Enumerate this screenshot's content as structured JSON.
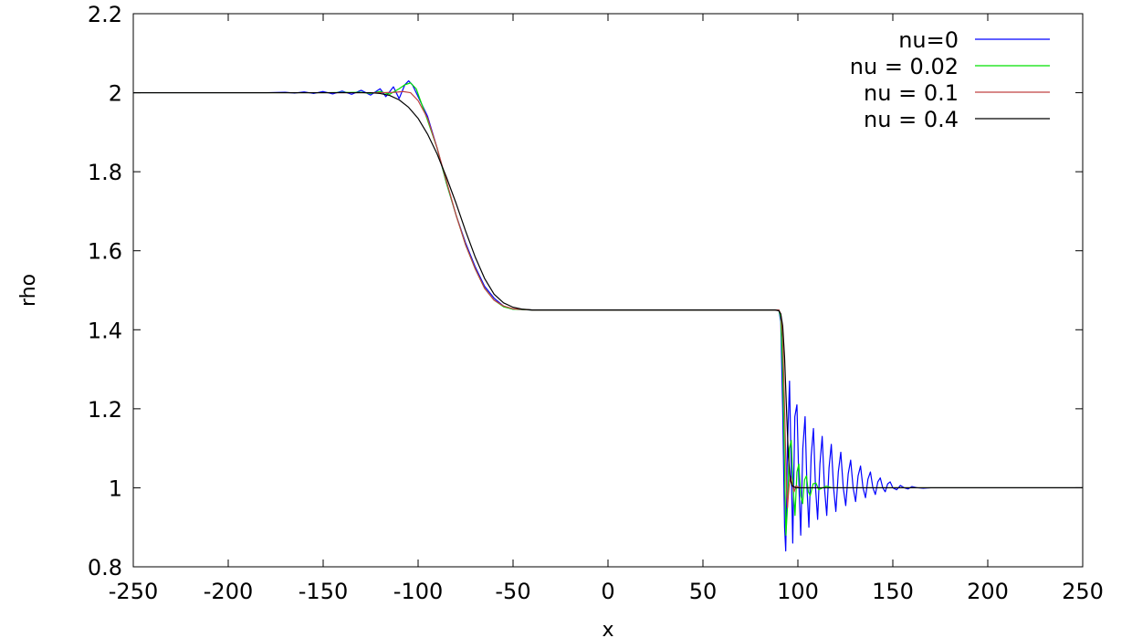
{
  "chart_data": {
    "type": "line",
    "title": "",
    "xlabel": "x",
    "ylabel": "rho",
    "xlim": [
      -250,
      250
    ],
    "ylim": [
      0.8,
      2.2
    ],
    "x_ticks": [
      -250,
      -200,
      -150,
      -100,
      -50,
      0,
      50,
      100,
      150,
      200,
      250
    ],
    "x_tick_labels": [
      "-250",
      "-200",
      "-150",
      "-100",
      "-50",
      "0",
      "50",
      "100",
      "150",
      "200",
      "250"
    ],
    "y_ticks": [
      0.8,
      1.0,
      1.2,
      1.4,
      1.6,
      1.8,
      2.0,
      2.2
    ],
    "y_tick_labels": [
      "0.8",
      "1",
      "1.2",
      "1.4",
      "1.6",
      "1.8",
      "2",
      "2.2"
    ],
    "grid": false,
    "legend_position": "top-right",
    "series": [
      {
        "name": "nu=0",
        "color": "#0000ff",
        "points": [
          [
            -250,
            2.0
          ],
          [
            -180,
            2.0
          ],
          [
            -170,
            2.001
          ],
          [
            -165,
            1.999
          ],
          [
            -160,
            2.002
          ],
          [
            -155,
            1.998
          ],
          [
            -150,
            2.003
          ],
          [
            -145,
            1.997
          ],
          [
            -140,
            2.004
          ],
          [
            -135,
            1.996
          ],
          [
            -130,
            2.006
          ],
          [
            -125,
            1.994
          ],
          [
            -120,
            2.01
          ],
          [
            -117,
            1.99
          ],
          [
            -113,
            2.015
          ],
          [
            -110,
            1.985
          ],
          [
            -107,
            2.02
          ],
          [
            -105,
            2.03
          ],
          [
            -103,
            2.02
          ],
          [
            -100,
            1.99
          ],
          [
            -95,
            1.94
          ],
          [
            -90,
            1.86
          ],
          [
            -85,
            1.77
          ],
          [
            -80,
            1.69
          ],
          [
            -75,
            1.62
          ],
          [
            -70,
            1.56
          ],
          [
            -65,
            1.51
          ],
          [
            -60,
            1.48
          ],
          [
            -55,
            1.46
          ],
          [
            -50,
            1.452
          ],
          [
            -40,
            1.45
          ],
          [
            0,
            1.45
          ],
          [
            50,
            1.45
          ],
          [
            90,
            1.45
          ],
          [
            91,
            1.42
          ],
          [
            92,
            1.2
          ],
          [
            93,
            0.9
          ],
          [
            93.6,
            0.84
          ],
          [
            94.5,
            1.1
          ],
          [
            95.6,
            1.27
          ],
          [
            96.5,
            1.05
          ],
          [
            97.3,
            0.86
          ],
          [
            98.4,
            1.18
          ],
          [
            99.5,
            1.21
          ],
          [
            100.6,
            1.0
          ],
          [
            101.5,
            0.88
          ],
          [
            102.6,
            1.1
          ],
          [
            103.8,
            1.18
          ],
          [
            104.8,
            1.0
          ],
          [
            105.8,
            0.9
          ],
          [
            107,
            1.08
          ],
          [
            108.2,
            1.15
          ],
          [
            109.3,
            1.0
          ],
          [
            110.4,
            0.92
          ],
          [
            111.6,
            1.06
          ],
          [
            112.8,
            1.13
          ],
          [
            114,
            1.0
          ],
          [
            115.2,
            0.93
          ],
          [
            116.4,
            1.05
          ],
          [
            117.6,
            1.11
          ],
          [
            118.8,
            1.0
          ],
          [
            120,
            0.94
          ],
          [
            121.3,
            1.04
          ],
          [
            122.6,
            1.09
          ],
          [
            123.9,
            1.0
          ],
          [
            125.2,
            0.955
          ],
          [
            126.5,
            1.035
          ],
          [
            127.8,
            1.07
          ],
          [
            129.1,
            1.0
          ],
          [
            130.4,
            0.965
          ],
          [
            131.7,
            1.03
          ],
          [
            133,
            1.055
          ],
          [
            134.3,
            1.0
          ],
          [
            135.6,
            0.975
          ],
          [
            136.9,
            1.022
          ],
          [
            138.2,
            1.04
          ],
          [
            139.5,
            1.0
          ],
          [
            140.8,
            0.983
          ],
          [
            142.1,
            1.015
          ],
          [
            143.4,
            1.025
          ],
          [
            144.7,
            1.0
          ],
          [
            146,
            0.99
          ],
          [
            147.3,
            1.01
          ],
          [
            148.6,
            1.015
          ],
          [
            150,
            1.0
          ],
          [
            152,
            0.995
          ],
          [
            154,
            1.006
          ],
          [
            156,
            1.0
          ],
          [
            158,
            0.997
          ],
          [
            160,
            1.003
          ],
          [
            163,
            1.0
          ],
          [
            166,
            0.999
          ],
          [
            170,
            1.0
          ],
          [
            250,
            1.0
          ]
        ]
      },
      {
        "name": "nu = 0.02",
        "color": "#00e000",
        "points": [
          [
            -250,
            2.0
          ],
          [
            -150,
            2.0
          ],
          [
            -130,
            2.001
          ],
          [
            -125,
            1.998
          ],
          [
            -120,
            2.003
          ],
          [
            -115,
            1.996
          ],
          [
            -110,
            2.01
          ],
          [
            -107,
            2.02
          ],
          [
            -104,
            2.025
          ],
          [
            -101,
            2.01
          ],
          [
            -98,
            1.97
          ],
          [
            -95,
            1.93
          ],
          [
            -90,
            1.86
          ],
          [
            -85,
            1.77
          ],
          [
            -80,
            1.69
          ],
          [
            -75,
            1.615
          ],
          [
            -70,
            1.555
          ],
          [
            -65,
            1.505
          ],
          [
            -60,
            1.475
          ],
          [
            -55,
            1.458
          ],
          [
            -50,
            1.452
          ],
          [
            -40,
            1.45
          ],
          [
            0,
            1.45
          ],
          [
            50,
            1.45
          ],
          [
            90,
            1.45
          ],
          [
            91,
            1.43
          ],
          [
            92,
            1.3
          ],
          [
            93,
            1.05
          ],
          [
            93.7,
            0.88
          ],
          [
            94.5,
            0.95
          ],
          [
            95.5,
            1.1
          ],
          [
            96.5,
            1.12
          ],
          [
            97.5,
            1.0
          ],
          [
            98.5,
            0.93
          ],
          [
            99.5,
            1.04
          ],
          [
            100.5,
            1.06
          ],
          [
            101.5,
            0.98
          ],
          [
            102.5,
            0.96
          ],
          [
            103.5,
            1.02
          ],
          [
            104.5,
            1.03
          ],
          [
            105.5,
            0.99
          ],
          [
            106.5,
            0.98
          ],
          [
            108,
            1.01
          ],
          [
            109.5,
            1.012
          ],
          [
            111,
            0.995
          ],
          [
            113,
            1.0
          ],
          [
            115,
            1.004
          ],
          [
            118,
            1.0
          ],
          [
            250,
            1.0
          ]
        ]
      },
      {
        "name": "nu = 0.1",
        "color": "#c04040",
        "points": [
          [
            -250,
            2.0
          ],
          [
            -120,
            2.0
          ],
          [
            -112,
            2.001
          ],
          [
            -108,
            2.003
          ],
          [
            -104,
            2.0
          ],
          [
            -100,
            1.98
          ],
          [
            -95,
            1.935
          ],
          [
            -90,
            1.86
          ],
          [
            -85,
            1.775
          ],
          [
            -80,
            1.69
          ],
          [
            -75,
            1.615
          ],
          [
            -70,
            1.555
          ],
          [
            -65,
            1.505
          ],
          [
            -60,
            1.475
          ],
          [
            -55,
            1.46
          ],
          [
            -50,
            1.453
          ],
          [
            -40,
            1.45
          ],
          [
            0,
            1.45
          ],
          [
            50,
            1.45
          ],
          [
            90,
            1.45
          ],
          [
            91,
            1.44
          ],
          [
            92,
            1.38
          ],
          [
            93,
            1.2
          ],
          [
            94,
            1.0
          ],
          [
            94.5,
            0.95
          ],
          [
            95.3,
            1.0
          ],
          [
            96,
            1.03
          ],
          [
            97,
            1.01
          ],
          [
            98,
            0.99
          ],
          [
            99,
            1.005
          ],
          [
            101,
            1.0
          ],
          [
            250,
            1.0
          ]
        ]
      },
      {
        "name": "nu = 0.4",
        "color": "#000000",
        "points": [
          [
            -250,
            2.0
          ],
          [
            -125,
            2.0
          ],
          [
            -120,
            1.998
          ],
          [
            -115,
            1.993
          ],
          [
            -110,
            1.982
          ],
          [
            -105,
            1.963
          ],
          [
            -100,
            1.935
          ],
          [
            -95,
            1.895
          ],
          [
            -90,
            1.845
          ],
          [
            -85,
            1.785
          ],
          [
            -80,
            1.72
          ],
          [
            -75,
            1.65
          ],
          [
            -70,
            1.585
          ],
          [
            -65,
            1.53
          ],
          [
            -60,
            1.49
          ],
          [
            -55,
            1.468
          ],
          [
            -50,
            1.457
          ],
          [
            -45,
            1.452
          ],
          [
            -40,
            1.45
          ],
          [
            0,
            1.45
          ],
          [
            50,
            1.45
          ],
          [
            88,
            1.45
          ],
          [
            90,
            1.448
          ],
          [
            91,
            1.44
          ],
          [
            92,
            1.41
          ],
          [
            93,
            1.33
          ],
          [
            94,
            1.2
          ],
          [
            95,
            1.08
          ],
          [
            96,
            1.02
          ],
          [
            97,
            1.005
          ],
          [
            99,
            1.0
          ],
          [
            250,
            1.0
          ]
        ]
      }
    ]
  }
}
